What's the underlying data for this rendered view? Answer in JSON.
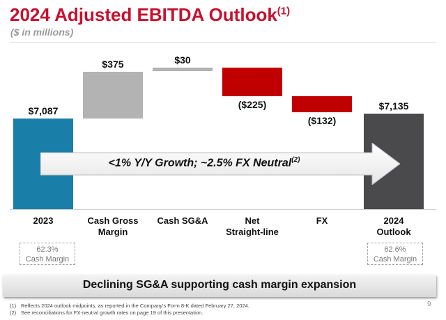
{
  "header": {
    "title": "2024 Adjusted EBITDA Outlook",
    "title_sup": "(1)",
    "subtitle": "($ in millions)"
  },
  "chart_data": {
    "type": "bar",
    "subtype": "waterfall",
    "categories": [
      "2023",
      "Cash Gross Margin",
      "Cash SG&A",
      "Net Straight-line",
      "FX",
      "2024 Outlook"
    ],
    "category_lines": [
      [
        "2023"
      ],
      [
        "Cash Gross",
        "Margin"
      ],
      [
        "Cash SG&A"
      ],
      [
        "Net",
        "Straight-line"
      ],
      [
        "FX"
      ],
      [
        "2024",
        "Outlook"
      ]
    ],
    "values": [
      7087,
      375,
      30,
      -225,
      -132,
      7135
    ],
    "value_labels": [
      "$7,087",
      "$375",
      "$30",
      "($225)",
      "($132)",
      "$7,135"
    ],
    "bar_kinds": [
      "total",
      "increase",
      "increase",
      "decrease",
      "decrease",
      "total"
    ],
    "colors": {
      "total_2023": "#1a7fa8",
      "increase": "#b3b3b3",
      "decrease": "#c00000",
      "total_2024": "#4a4a4c"
    },
    "title": "2024 Adjusted EBITDA Outlook",
    "ylabel": "$ in millions"
  },
  "arrow": {
    "text": "<1% Y/Y Growth; ~2.5% FX Neutral",
    "sup": "(2)"
  },
  "margins": {
    "left": {
      "pct": "62.3%",
      "label": "Cash Margin"
    },
    "right": {
      "pct": "62.6%",
      "label": "Cash Margin"
    }
  },
  "banner": {
    "text": "Declining SG&A supporting cash margin expansion"
  },
  "footnotes": [
    {
      "num": "(1)",
      "text": "Reflects 2024 outlook midpoints, as reported in the Company's Form 8-K dated February 27, 2024."
    },
    {
      "num": "(2)",
      "text": "See reconciliations for FX-neutral growth rates on page 19 of this presentation."
    }
  ],
  "page_number": "9"
}
